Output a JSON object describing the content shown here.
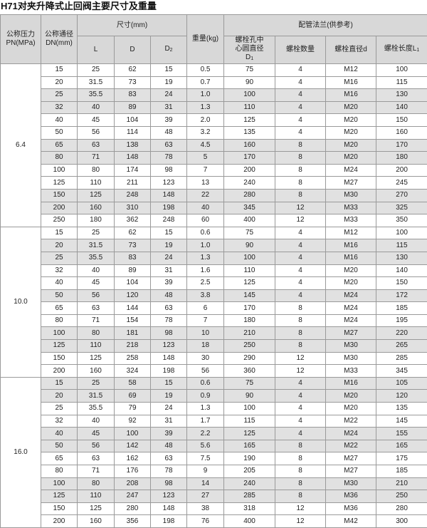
{
  "title": "H71对夹升降式止回阀主要尺寸及重量",
  "header": {
    "pn": "公称压力PN(MPa)",
    "dn": "公称通径DN(mm)",
    "size": "尺寸(mm)",
    "weight": "重量(kg)",
    "flange": "配管法兰(供参考)",
    "L": "L",
    "D": "D",
    "D2": "D2",
    "bolt_circle": "螺栓孔中心圆直径D1",
    "bolt_count": "螺栓数量",
    "bolt_dia": "螺栓直径d",
    "bolt_len": "螺栓长度L1"
  },
  "sections": [
    {
      "pn": "6.4",
      "shaded_rows": [
        2,
        3,
        6,
        7,
        10,
        11
      ],
      "rows": [
        [
          "15",
          "25",
          "62",
          "15",
          "0.5",
          "75",
          "4",
          "M12",
          "100"
        ],
        [
          "20",
          "31.5",
          "73",
          "19",
          "0.7",
          "90",
          "4",
          "M16",
          "115"
        ],
        [
          "25",
          "35.5",
          "83",
          "24",
          "1.0",
          "100",
          "4",
          "M16",
          "130"
        ],
        [
          "32",
          "40",
          "89",
          "31",
          "1.3",
          "110",
          "4",
          "M20",
          "140"
        ],
        [
          "40",
          "45",
          "104",
          "39",
          "2.0",
          "125",
          "4",
          "M20",
          "150"
        ],
        [
          "50",
          "56",
          "114",
          "48",
          "3.2",
          "135",
          "4",
          "M20",
          "160"
        ],
        [
          "65",
          "63",
          "138",
          "63",
          "4.5",
          "160",
          "8",
          "M20",
          "170"
        ],
        [
          "80",
          "71",
          "148",
          "78",
          "5",
          "170",
          "8",
          "M20",
          "180"
        ],
        [
          "100",
          "80",
          "174",
          "98",
          "7",
          "200",
          "8",
          "M24",
          "200"
        ],
        [
          "125",
          "110",
          "211",
          "123",
          "13",
          "240",
          "8",
          "M27",
          "245"
        ],
        [
          "150",
          "125",
          "248",
          "148",
          "22",
          "280",
          "8",
          "M30",
          "270"
        ],
        [
          "200",
          "160",
          "310",
          "198",
          "40",
          "345",
          "12",
          "M33",
          "325"
        ],
        [
          "250",
          "180",
          "362",
          "248",
          "60",
          "400",
          "12",
          "M33",
          "350"
        ]
      ]
    },
    {
      "pn": "10.0",
      "shaded_rows": [
        1,
        2,
        5,
        8,
        9
      ],
      "rows": [
        [
          "15",
          "25",
          "62",
          "15",
          "0.6",
          "75",
          "4",
          "M12",
          "100"
        ],
        [
          "20",
          "31.5",
          "73",
          "19",
          "1.0",
          "90",
          "4",
          "M16",
          "115"
        ],
        [
          "25",
          "35.5",
          "83",
          "24",
          "1.3",
          "100",
          "4",
          "M16",
          "130"
        ],
        [
          "32",
          "40",
          "89",
          "31",
          "1.6",
          "110",
          "4",
          "M20",
          "140"
        ],
        [
          "40",
          "45",
          "104",
          "39",
          "2.5",
          "125",
          "4",
          "M20",
          "150"
        ],
        [
          "50",
          "56",
          "120",
          "48",
          "3.8",
          "145",
          "4",
          "M24",
          "172"
        ],
        [
          "65",
          "63",
          "144",
          "63",
          "6",
          "170",
          "8",
          "M24",
          "185"
        ],
        [
          "80",
          "71",
          "154",
          "78",
          "7",
          "180",
          "8",
          "M24",
          "195"
        ],
        [
          "100",
          "80",
          "181",
          "98",
          "10",
          "210",
          "8",
          "M27",
          "220"
        ],
        [
          "125",
          "110",
          "218",
          "123",
          "18",
          "250",
          "8",
          "M30",
          "265"
        ],
        [
          "150",
          "125",
          "258",
          "148",
          "30",
          "290",
          "12",
          "M30",
          "285"
        ],
        [
          "200",
          "160",
          "324",
          "198",
          "56",
          "360",
          "12",
          "M33",
          "345"
        ]
      ]
    },
    {
      "pn": "16.0",
      "shaded_rows": [
        0,
        1,
        4,
        5,
        8,
        9
      ],
      "rows": [
        [
          "15",
          "25",
          "58",
          "15",
          "0.6",
          "75",
          "4",
          "M16",
          "105"
        ],
        [
          "20",
          "31.5",
          "69",
          "19",
          "0.9",
          "90",
          "4",
          "M20",
          "120"
        ],
        [
          "25",
          "35.5",
          "79",
          "24",
          "1.3",
          "100",
          "4",
          "M20",
          "135"
        ],
        [
          "32",
          "40",
          "92",
          "31",
          "1.7",
          "115",
          "4",
          "M22",
          "145"
        ],
        [
          "40",
          "45",
          "100",
          "39",
          "2.2",
          "125",
          "4",
          "M24",
          "155"
        ],
        [
          "50",
          "56",
          "142",
          "48",
          "5.6",
          "165",
          "8",
          "M22",
          "165"
        ],
        [
          "65",
          "63",
          "162",
          "63",
          "7.5",
          "190",
          "8",
          "M27",
          "175"
        ],
        [
          "80",
          "71",
          "176",
          "78",
          "9",
          "205",
          "8",
          "M27",
          "185"
        ],
        [
          "100",
          "80",
          "208",
          "98",
          "14",
          "240",
          "8",
          "M30",
          "210"
        ],
        [
          "125",
          "110",
          "247",
          "123",
          "27",
          "285",
          "8",
          "M36",
          "250"
        ],
        [
          "150",
          "125",
          "280",
          "148",
          "38",
          "318",
          "12",
          "M36",
          "280"
        ],
        [
          "200",
          "160",
          "356",
          "198",
          "76",
          "400",
          "12",
          "M42",
          "300"
        ]
      ]
    }
  ]
}
